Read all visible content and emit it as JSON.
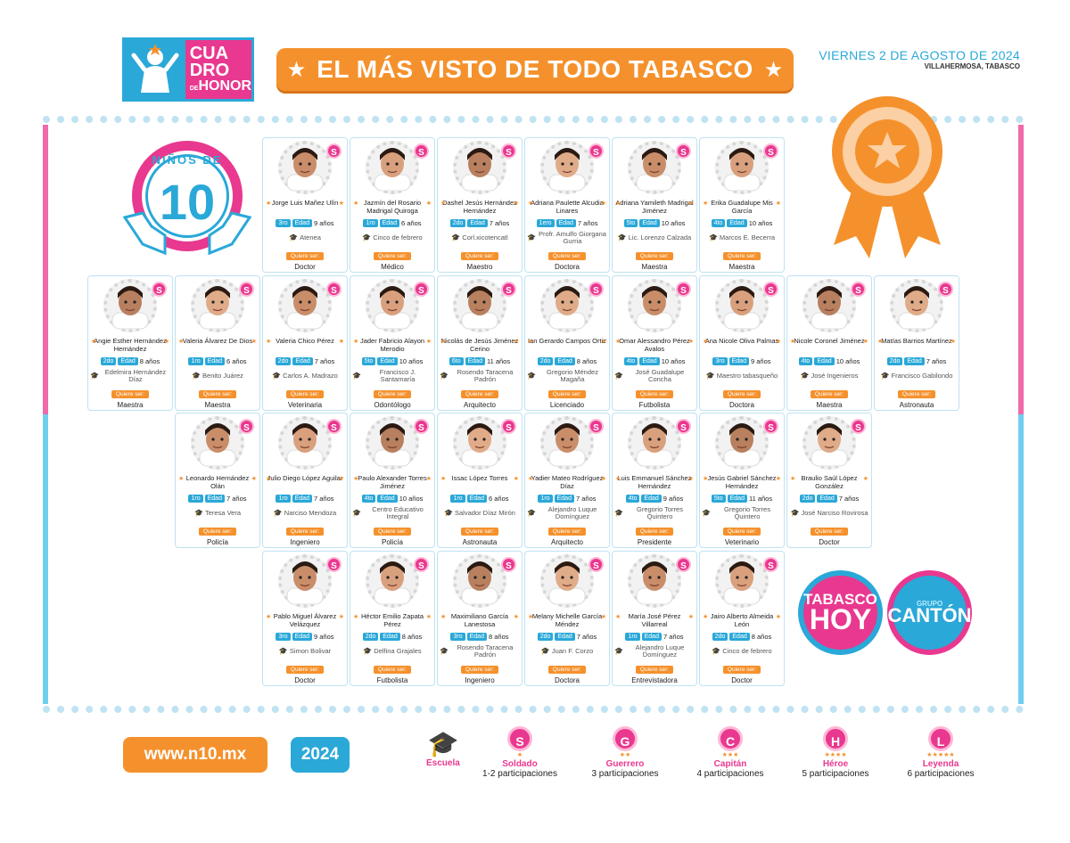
{
  "header": {
    "logo": {
      "line1": "CUA",
      "line2": "DRO",
      "line3": "HONOR",
      "small": "DE"
    },
    "banner_title": "EL MÁS VISTO DE TODO TABASCO",
    "date": "VIERNES 2 DE AGOSTO DE 2024",
    "location": "VILLAHERMOSA, TABASCO"
  },
  "badge": {
    "label": "NIÑOS DE",
    "number": "10"
  },
  "labels": {
    "edad": "Edad",
    "quiere_ser": "Quiere ser:",
    "sbadge": "S"
  },
  "kids": [
    {
      "name": "Jorge Luis Mañez Ulín",
      "grade": "3ro",
      "age": "9 años",
      "school": "Atenea",
      "prof": "Doctor"
    },
    {
      "name": "Jazmín del Rosario Madrigal Quiroga",
      "grade": "1ro",
      "age": "6 años",
      "school": "Cinco de febrero",
      "prof": "Médico"
    },
    {
      "name": "Dashel Jesús Hernández Hernández",
      "grade": "2do",
      "age": "7 años",
      "school": "Corl.xicotencatl",
      "prof": "Maestro"
    },
    {
      "name": "Adriana Paulette Alcudia Linares",
      "grade": "1ero",
      "age": "7 años",
      "school": "Profr. Amulfo Giorgana Gurria",
      "prof": "Doctora"
    },
    {
      "name": "Adriana Yamileth Madrigal Jiménez",
      "grade": "5to",
      "age": "10 años",
      "school": "Lic. Lorenzo Calzada",
      "prof": "Maestra"
    },
    {
      "name": "Erika Guadalupe Mis García",
      "grade": "4to",
      "age": "10 años",
      "school": "Marcos E. Becerra",
      "prof": "Maestra"
    },
    {
      "name": "Angie Esther Hernández Hernández",
      "grade": "2do",
      "age": "8 años",
      "school": "Edelmira Hernández Díaz",
      "prof": "Maestra"
    },
    {
      "name": "Valeria Álvarez De Dios",
      "grade": "1ro",
      "age": "6 años",
      "school": "Benito Juárez",
      "prof": "Maestra"
    },
    {
      "name": "Valeria Chico Pérez",
      "grade": "2do",
      "age": "7 años",
      "school": "Carlos A. Madrazo",
      "prof": "Veterinaria"
    },
    {
      "name": "Jader Fabricio Alayon Merodio",
      "grade": "5to",
      "age": "10 años",
      "school": "Francisco J. Santamaría",
      "prof": "Odontólogo"
    },
    {
      "name": "Nicolás de Jesús Jiménez Cerino",
      "grade": "6to",
      "age": "11 años",
      "school": "Rosendo Taracena Padrón",
      "prof": "Arquitecto"
    },
    {
      "name": "Ian Gerardo Campos Ortiz",
      "grade": "2do",
      "age": "8 años",
      "school": "Gregorio Méndez Magaña",
      "prof": "Licenciado"
    },
    {
      "name": "Omar Alessandro Pérez Avalos",
      "grade": "4to",
      "age": "10 años",
      "school": "José Guadalupe Concha",
      "prof": "Futbolista"
    },
    {
      "name": "Ana Nicole Oliva Palmas",
      "grade": "3ro",
      "age": "9 años",
      "school": "Maestro tabasqueño",
      "prof": "Doctora"
    },
    {
      "name": "Nicole Coronel Jiménez",
      "grade": "4to",
      "age": "10 años",
      "school": "José Ingenieros",
      "prof": "Maestra"
    },
    {
      "name": "Matías Barrios Martínez",
      "grade": "2do",
      "age": "7 años",
      "school": "Francisco Gabilondo",
      "prof": "Astronauta"
    },
    {
      "name": "Leonardo Hernández Olán",
      "grade": "1ro",
      "age": "7 años",
      "school": "Teresa Vera",
      "prof": "Policía"
    },
    {
      "name": "Julio Diego López Aguilar",
      "grade": "1ro",
      "age": "7 años",
      "school": "Narciso Mendoza",
      "prof": "Ingeniero"
    },
    {
      "name": "Paulo Alexander Torres Jiménez",
      "grade": "4to",
      "age": "10 años",
      "school": "Centro Educativo Integral",
      "prof": "Policía"
    },
    {
      "name": "Issac López Torres",
      "grade": "1ro",
      "age": "6 años",
      "school": "Salvador Díaz Mirón",
      "prof": "Astronauta"
    },
    {
      "name": "Yadier Mateo Rodríguez Díaz",
      "grade": "1ro",
      "age": "7 años",
      "school": "Alejandro Luque Domínguez",
      "prof": "Arquitecto"
    },
    {
      "name": "Luis Emmanuel Sánchez Hernández",
      "grade": "4to",
      "age": "9 años",
      "school": "Gregorio Torres Quintero",
      "prof": "Presidente"
    },
    {
      "name": "Jesús Gabriel Sánchez Hernández",
      "grade": "5to",
      "age": "11 años",
      "school": "Gregorio Torres Quintero",
      "prof": "Veterinario"
    },
    {
      "name": "Braulio Saúl López González",
      "grade": "2do",
      "age": "7 años",
      "school": "José Narciso Rovirosa",
      "prof": "Doctor"
    },
    {
      "name": "Pablo Miguel Álvarez Velázquez",
      "grade": "3ro",
      "age": "9 años",
      "school": "Simon Bolivar",
      "prof": "Doctor"
    },
    {
      "name": "Héctor Emilio Zapata Pérez",
      "grade": "2do",
      "age": "8 años",
      "school": "Delfina Grajales",
      "prof": "Futbolista"
    },
    {
      "name": "Maximiliano García Lanestosa",
      "grade": "3ro",
      "age": "8 años",
      "school": "Rosendo Taracena Padrón",
      "prof": "Ingeniero"
    },
    {
      "name": "Melany Michelle García Méndez",
      "grade": "2do",
      "age": "7 años",
      "school": "Juan F. Corzo",
      "prof": "Doctora"
    },
    {
      "name": "María José Pérez Villarreal",
      "grade": "1ro",
      "age": "7 años",
      "school": "Alejandro Luque Domínguez",
      "prof": "Entrevistadora"
    },
    {
      "name": "Jairo Alberto Almeida León",
      "grade": "2do",
      "age": "8 años",
      "school": "Cinco de febrero",
      "prof": "Doctor"
    }
  ],
  "publishers": {
    "tabasco": "TABASCO",
    "hoy": "HOY",
    "grupo": "GRUPO",
    "canton": "CANTÓN"
  },
  "footer": {
    "url": "www.n10.mx",
    "year": "2024",
    "escuela": "Escuela",
    "legend": [
      {
        "letter": "S",
        "title": "Soldado",
        "sub": "1-2 participaciones"
      },
      {
        "letter": "G",
        "title": "Guerrero",
        "sub": "3 participaciones"
      },
      {
        "letter": "C",
        "title": "Capitán",
        "sub": "4 participaciones"
      },
      {
        "letter": "H",
        "title": "Héroe",
        "sub": "5 participaciones"
      },
      {
        "letter": "L",
        "title": "Leyenda",
        "sub": "6 participaciones"
      }
    ]
  },
  "colors": {
    "pink": "#e9388f",
    "blue": "#2aa8d8",
    "orange": "#f5912c",
    "green": "#8bbd2c"
  }
}
